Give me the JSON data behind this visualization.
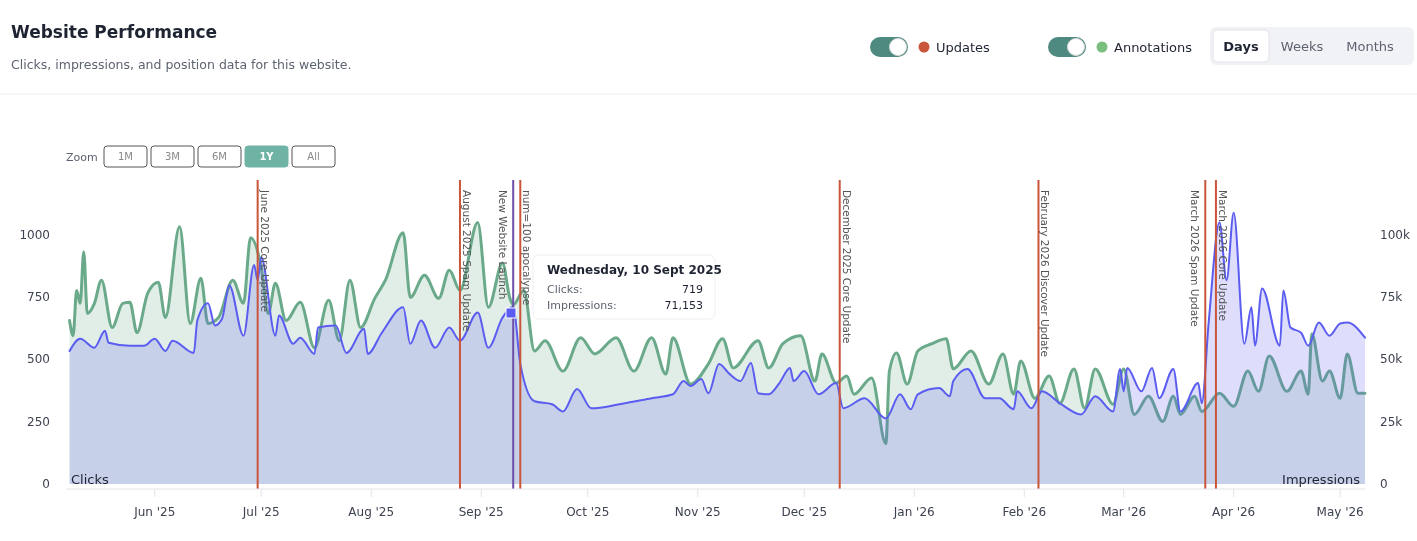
{
  "chart_data": {
    "type": "area",
    "title": "Website Performance",
    "subtitle": "Clicks, impressions, and position data for this website.",
    "ylabel": "Clicks",
    "y2label": "Impressions",
    "xlim": [
      "2025-05-07",
      "2026-05-08"
    ],
    "xticks": [
      {
        "value": "2025-06-01",
        "label": "Jun '25"
      },
      {
        "value": "2025-07-01",
        "label": "Jul '25"
      },
      {
        "value": "2025-08-01",
        "label": "Aug '25"
      },
      {
        "value": "2025-09-01",
        "label": "Sep '25"
      },
      {
        "value": "2025-10-01",
        "label": "Oct '25"
      },
      {
        "value": "2025-11-01",
        "label": "Nov '25"
      },
      {
        "value": "2025-12-01",
        "label": "Dec '25"
      },
      {
        "value": "2026-01-01",
        "label": "Jan '26"
      },
      {
        "value": "2026-02-01",
        "label": "Feb '26"
      },
      {
        "value": "2026-03-01",
        "label": "Mar '26"
      },
      {
        "value": "2026-04-01",
        "label": "Apr '26"
      },
      {
        "value": "2026-05-01",
        "label": "May '26"
      }
    ],
    "ylim": [
      0,
      1220
    ],
    "yticks": [
      0,
      250,
      500,
      750,
      1000
    ],
    "y2lim": [
      0,
      122000
    ],
    "y2ticks": [
      0,
      {
        "value": 25000,
        "label": "25k"
      },
      {
        "value": 50000,
        "label": "50k"
      },
      {
        "value": 75000,
        "label": "75k"
      },
      {
        "value": 100000,
        "label": "100k"
      }
    ],
    "series": [
      {
        "color": "#6aaa8a",
        "x": [
          "2025-05-08",
          "2025-05-09",
          "2025-05-10",
          "2025-05-11",
          "2025-05-12",
          "2025-05-13",
          "2025-05-15",
          "2025-05-17",
          "2025-05-20",
          "2025-05-23",
          "2025-05-25",
          "2025-05-27",
          "2025-05-30",
          "2025-06-02",
          "2025-06-04",
          "2025-06-08",
          "2025-06-11",
          "2025-06-14",
          "2025-06-16",
          "2025-06-19",
          "2025-06-23",
          "2025-06-26",
          "2025-06-28",
          "2025-07-01",
          "2025-07-03",
          "2025-07-05",
          "2025-07-08",
          "2025-07-12",
          "2025-07-16",
          "2025-07-20",
          "2025-07-23",
          "2025-07-26",
          "2025-07-29",
          "2025-08-02",
          "2025-08-05",
          "2025-08-10",
          "2025-08-12",
          "2025-08-16",
          "2025-08-20",
          "2025-08-23",
          "2025-08-26",
          "2025-08-31",
          "2025-09-03",
          "2025-09-07",
          "2025-09-09",
          "2025-09-10",
          "2025-09-13",
          "2025-09-16",
          "2025-09-19",
          "2025-09-24",
          "2025-09-29",
          "2025-10-03",
          "2025-10-09",
          "2025-10-14",
          "2025-10-19",
          "2025-10-23",
          "2025-10-25",
          "2025-10-30",
          "2025-11-04",
          "2025-11-08",
          "2025-11-11",
          "2025-11-18",
          "2025-11-21",
          "2025-11-25",
          "2025-11-30",
          "2025-12-04",
          "2025-12-06",
          "2025-12-10",
          "2025-12-13",
          "2025-12-15",
          "2025-12-20",
          "2025-12-24",
          "2025-12-25",
          "2025-12-27",
          "2025-12-30",
          "2026-01-02",
          "2026-01-06",
          "2026-01-10",
          "2026-01-12",
          "2026-01-17",
          "2026-01-22",
          "2026-01-26",
          "2026-01-29",
          "2026-01-31",
          "2026-02-04",
          "2026-02-08",
          "2026-02-11",
          "2026-02-15",
          "2026-02-18",
          "2026-02-21",
          "2026-02-26",
          "2026-03-01",
          "2026-03-04",
          "2026-03-08",
          "2026-03-12",
          "2026-03-15",
          "2026-03-17",
          "2026-03-21",
          "2026-03-23",
          "2026-03-28",
          "2026-04-01",
          "2026-04-05",
          "2026-04-08",
          "2026-04-11",
          "2026-04-16",
          "2026-04-20",
          "2026-04-22",
          "2026-04-23",
          "2026-04-26",
          "2026-04-28",
          "2026-05-01",
          "2026-05-03",
          "2026-05-06",
          "2026-05-08"
        ],
        "values": [
          656,
          595,
          777,
          725,
          931,
          684,
          725,
          818,
          628,
          725,
          729,
          607,
          765,
          810,
          668,
          1032,
          644,
          826,
          644,
          668,
          818,
          725,
          988,
          870,
          684,
          806,
          656,
          729,
          547,
          737,
          575,
          818,
          628,
          745,
          818,
          1008,
          749,
          838,
          745,
          858,
          777,
          1049,
          709,
          887,
          749,
          719,
          777,
          534,
          575,
          453,
          587,
          522,
          587,
          453,
          587,
          441,
          587,
          401,
          482,
          583,
          466,
          575,
          466,
          563,
          595,
          413,
          522,
          405,
          433,
          360,
          425,
          162,
          453,
          526,
          401,
          534,
          563,
          583,
          462,
          534,
          401,
          522,
          360,
          494,
          344,
          433,
          324,
          462,
          304,
          462,
          320,
          462,
          279,
          352,
          251,
          352,
          279,
          352,
          291,
          364,
          312,
          453,
          372,
          514,
          372,
          453,
          360,
          603,
          413,
          453,
          344,
          522,
          364,
          364
        ]
      },
      {
        "type": "area",
        "color": "#5b5cf0",
        "axis": "y2",
        "x": [
          "2025-05-08",
          "2025-05-11",
          "2025-05-15",
          "2025-05-18",
          "2025-05-19",
          "2025-05-25",
          "2025-05-29",
          "2025-06-01",
          "2025-06-04",
          "2025-06-06",
          "2025-06-12",
          "2025-06-13",
          "2025-06-16",
          "2025-06-18",
          "2025-06-20",
          "2025-06-22",
          "2025-06-26",
          "2025-06-29",
          "2025-06-30",
          "2025-07-01",
          "2025-07-05",
          "2025-07-06",
          "2025-07-10",
          "2025-07-12",
          "2025-07-16",
          "2025-07-17",
          "2025-07-22",
          "2025-07-25",
          "2025-07-30",
          "2025-07-31",
          "2025-08-04",
          "2025-08-10",
          "2025-08-12",
          "2025-08-15",
          "2025-08-19",
          "2025-08-23",
          "2025-08-26",
          "2025-08-31",
          "2025-09-03",
          "2025-09-07",
          "2025-09-10",
          "2025-09-12",
          "2025-09-16",
          "2025-09-21",
          "2025-09-24",
          "2025-09-28",
          "2025-10-02",
          "2025-10-10",
          "2025-10-19",
          "2025-10-25",
          "2025-10-28",
          "2025-10-30",
          "2025-11-02",
          "2025-11-04",
          "2025-11-07",
          "2025-11-10",
          "2025-11-13",
          "2025-11-16",
          "2025-11-18",
          "2025-11-21",
          "2025-11-24",
          "2025-11-27",
          "2025-11-28",
          "2025-12-01",
          "2025-12-05",
          "2025-12-10",
          "2025-12-12",
          "2025-12-18",
          "2025-12-24",
          "2025-12-28",
          "2025-12-31",
          "2026-01-02",
          "2026-01-08",
          "2026-01-11",
          "2026-01-12",
          "2026-01-16",
          "2026-01-21",
          "2026-01-25",
          "2026-01-29",
          "2026-01-30",
          "2026-02-03",
          "2026-02-06",
          "2026-02-11",
          "2026-02-17",
          "2026-02-21",
          "2026-02-26",
          "2026-02-28",
          "2026-03-01",
          "2026-03-02",
          "2026-03-06",
          "2026-03-09",
          "2026-03-11",
          "2026-03-15",
          "2026-03-17",
          "2026-03-22",
          "2026-03-23",
          "2026-03-25",
          "2026-03-28",
          "2026-03-30",
          "2026-04-01",
          "2026-04-04",
          "2026-04-06",
          "2026-04-07",
          "2026-04-09",
          "2026-04-14",
          "2026-04-15",
          "2026-04-17",
          "2026-04-20",
          "2026-04-22",
          "2026-04-25",
          "2026-04-28",
          "2026-05-01",
          "2026-05-03",
          "2026-05-08"
        ],
        "values": [
          53400,
          58300,
          54700,
          61500,
          56700,
          55500,
          55500,
          58300,
          53400,
          57500,
          52600,
          65600,
          72500,
          63600,
          66400,
          79800,
          59500,
          87900,
          81800,
          91100,
          59500,
          67600,
          56300,
          58700,
          52200,
          62800,
          63600,
          52600,
          62300,
          52200,
          60700,
          70900,
          56300,
          65600,
          54700,
          62800,
          57500,
          68800,
          54700,
          66800,
          71153,
          48200,
          33200,
          32000,
          29100,
          38100,
          30400,
          32000,
          34400,
          36000,
          41300,
          39300,
          42100,
          36400,
          48200,
          44100,
          41300,
          48600,
          36400,
          36000,
          40500,
          46600,
          41300,
          45300,
          36000,
          40500,
          30400,
          34400,
          26300,
          36000,
          30000,
          36000,
          38500,
          35200,
          41300,
          46200,
          34400,
          34400,
          30000,
          37200,
          30400,
          37200,
          32400,
          27900,
          35200,
          29100,
          46200,
          37200,
          46600,
          37200,
          46600,
          34400,
          46200,
          29100,
          40500,
          32400,
          65600,
          104900,
          81800,
          108900,
          56300,
          70900,
          55500,
          78500,
          55500,
          77700,
          62800,
          60700,
          55500,
          64800,
          59500,
          64400,
          64800,
          58700
        ]
      }
    ],
    "ref_lines": [
      {
        "axis": "x",
        "value": "2025-06-30",
        "label": "June 2025 Core Update",
        "color": "#c9553a"
      },
      {
        "axis": "x",
        "value": "2025-08-26",
        "label": "August 2025 Spam Update",
        "color": "#c9553a"
      },
      {
        "axis": "x",
        "value": "2025-09-10",
        "label": "New Website Launch",
        "color": "#6b4fa8"
      },
      {
        "axis": "x",
        "value": "2025-09-12",
        "label": "num=100 apocalypse",
        "color": "#c9553a"
      },
      {
        "axis": "x",
        "value": "2025-12-11",
        "label": "December 2025 Core Update",
        "color": "#c9553a"
      },
      {
        "axis": "x",
        "value": "2026-02-05",
        "label": "February 2026 Discover Update",
        "color": "#c9553a"
      },
      {
        "axis": "x",
        "value": "2026-03-24",
        "label": "March 2026 Spam Update",
        "color": "#c9553a"
      },
      {
        "axis": "x",
        "value": "2026-03-27",
        "label": "March 2026 Core Update",
        "color": "#c9553a"
      }
    ],
    "annotations": [
      "Updates",
      "Annotations",
      "Days",
      "Weeks",
      "Months",
      "Zoom",
      "1M",
      "3M",
      "6M",
      "1Y",
      "All",
      "Wednesday, 10 Sept 2025",
      "Clicks:",
      "719",
      "Impressions:",
      "71,153"
    ]
  }
}
